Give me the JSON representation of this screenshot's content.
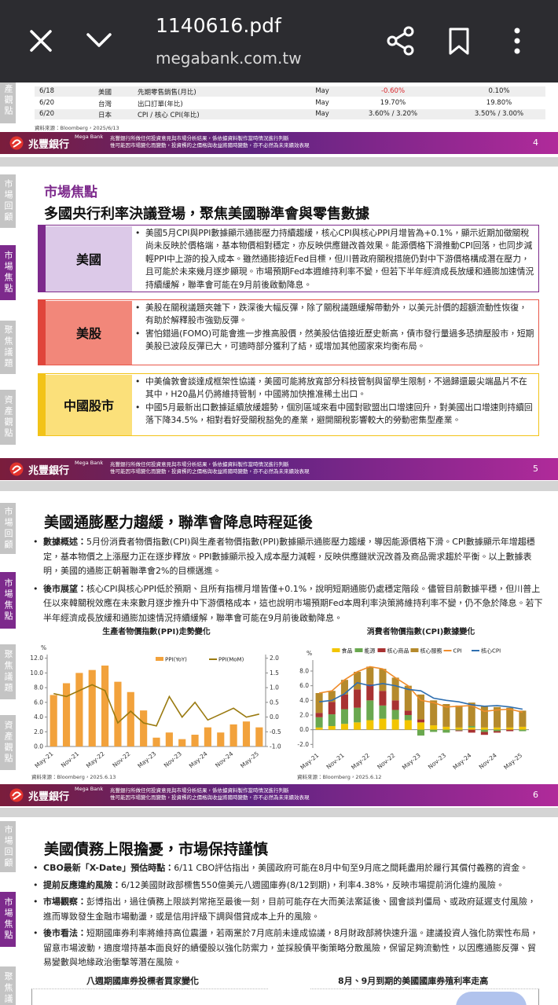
{
  "viewer": {
    "title": "1140616.pdf",
    "url": "megabank.com.tw"
  },
  "brand": {
    "name": "兆豐銀行",
    "en": "Mega Bank",
    "disclaimer": [
      "兆豐銀行所做任何投資意見與市場分析結果，係依據資料製作當時情況進行判斷",
      "惟可能因市場變化而變動，投資標的之價格與收益將隨時變動，亦不必然為未來績效表現"
    ]
  },
  "sidebar": [
    "市場回顧",
    "市場焦點",
    "聚焦議題",
    "資產觀點"
  ],
  "page4": {
    "rows": [
      [
        "6/18",
        "美國",
        "先期零售銷售(月比)",
        "May",
        "-0.60%",
        "0.10%"
      ],
      [
        "6/20",
        "台灣",
        "出口訂單(年比)",
        "May",
        "19.70%",
        "19.80%"
      ],
      [
        "6/20",
        "日本",
        "CPI / 核心 CPI(年比)",
        "May",
        "3.60% / 3.20%",
        "3.50% / 3.00%"
      ]
    ],
    "source": "資料來源：Bloomberg，2025/6/13",
    "number": 4
  },
  "page5": {
    "title": "市場焦點",
    "subtitle": "多國央行利率決議登場，聚焦美國聯準會與零售數據",
    "boxes": [
      {
        "label": "美國",
        "bullets": [
          "美國5月CPI與PPI數據顯示通膨壓力持續趨緩，核心CPI與核心PPI月增皆為+0.1%，顯示近期加徵關稅尚未反映於價格端，基本物價相對穩定，亦反映供應鏈改善效果。能源價格下滑推動CPI回落，也同步減輕PPI中上游的投入成本。雖然通膨接近Fed目標，但川普政府關稅措施仍對中下游價格構成潛在壓力，且可能於未來幾月逐步顯現。市場預期Fed本週維持利率不變，但若下半年經濟成長放緩和通膨加速情況持續緩解，聯準會可能在9月前後啟動降息。"
        ]
      },
      {
        "label": "美股",
        "bullets": [
          "美股在關稅議題夾雜下，跌深後大幅反彈，除了關稅議題緩解帶動外，以美元計價的超額流動性恢復，有助於解釋股市強勁反彈。",
          "害怕錯過(FOMO)可能會進一步推高股價，然美股估值接近歷史新高，債市發行量過多恐擠壓股市，短期美股已波段反彈已大，可適時部分獲利了結，或增加其他國家來均衡布局。"
        ]
      },
      {
        "label": "中國股市",
        "bullets": [
          "中美倫敦會談達成框架性協議，美國可能將放寬部分科技管制與留學生限制，不過歸還最尖端晶片不在其中，H20晶片仍將維持管制，中國將加快推准稀土出口。",
          "中國5月最新出口數據延續放緩趨勢，個別區域來看中國對歐盟出口增速回升，對美國出口增速則持續回落下降34.5%，相對看好受關稅豁免的產業，避開關稅影響較大的勞動密集型產業。"
        ]
      }
    ],
    "number": 5
  },
  "page6": {
    "title": "美國通膨壓力趨緩，聯準會降息時程延後",
    "bullets": [
      {
        "lead": "數據概述：",
        "text": "5月份消費者物價指數(CPI)與生產者物價指數(PPI)數據顯示通膨壓力趨緩，導因能源價格下滑。CPI數據顯示年增趨穩定，基本物價之上漲壓力正在逐步釋放。PPI數據顯示投入成本壓力減輕，反映供應鏈狀況改善及商品需求趨於平衡。以上數據表明，美國的通膨正朝著聯準會2%的目標邁進。"
      },
      {
        "lead": "後市展望：",
        "text": "核心CPI與核心PPI低於預期、且所有指標月增皆僅+0.1%，說明短期通膨仍處穩定階段。儘管目前數據平穩，但川普上任以來韓關稅效應在未來數月逐步推升中下游價格成本，這也說明市場預期Fed本周利率決策將維持利率不變，仍不急於降息。若下半年經濟成長放緩和通膨加速情況持續緩解，聯準會可能在9月前後啟動降息。"
      }
    ],
    "charts": [
      {
        "type": "combo",
        "title": "生產者物價指數(PPI)走勢變化",
        "y_unit": "%",
        "legend": "top-right",
        "stacked": true,
        "categories": [
          "May-21",
          null,
          "Nov-21",
          null,
          "May-22",
          null,
          "Nov-22",
          null,
          "May-23",
          null,
          "Nov-23",
          null,
          "May-24",
          null,
          "Nov-24",
          null,
          "May-25"
        ],
        "series": [
          {
            "name": "PPI(YoY)",
            "kind": "bar",
            "color": "#f2a23c",
            "values": [
              7.0,
              8.6,
              10.0,
              10.4,
              11.0,
              8.8,
              7.4,
              4.9,
              1.2,
              1.9,
              1.0,
              1.6,
              2.6,
              1.9,
              3.0,
              3.4,
              2.6
            ]
          },
          {
            "name": "PPI(MoM)",
            "kind": "line",
            "axis": "y2",
            "color": "#9a7a10",
            "values": [
              0.8,
              0.7,
              0.9,
              1.1,
              0.9,
              -0.2,
              0.2,
              -0.2,
              -0.3,
              0.7,
              0.0,
              0.5,
              -0.1,
              0.1,
              0.3,
              0.0,
              0.1
            ]
          }
        ],
        "ylim": [
          0,
          12.5
        ],
        "yticks": [
          {
            "value": 0,
            "label": "0.0"
          },
          {
            "value": 2,
            "label": "2.0"
          },
          {
            "value": 4,
            "label": "4.0"
          },
          {
            "value": 6,
            "label": "6.0"
          },
          {
            "value": 8,
            "label": "8.0"
          },
          {
            "value": 10,
            "label": "10.0"
          },
          {
            "value": 12,
            "label": "12.0"
          }
        ],
        "y2lim": [
          -1,
          2.125
        ],
        "y2ticks": [
          {
            "value": -1,
            "label": "-1.0"
          },
          {
            "value": -0.5,
            "label": "-0.5"
          },
          {
            "value": 0,
            "label": "0.0"
          },
          {
            "value": 0.5,
            "label": "0.5"
          },
          {
            "value": 1,
            "label": "1.0"
          },
          {
            "value": 1.5,
            "label": "1.5"
          },
          {
            "value": 2,
            "label": "2.0"
          }
        ],
        "source": "資料來源：Bloomberg，2025.6.13"
      },
      {
        "type": "combo",
        "title": "消費者物價指數(CPI)數據變化",
        "y_unit": "%",
        "legend": "top",
        "stacked": true,
        "categories": [
          "May-21",
          null,
          "Nov-21",
          null,
          "May-22",
          null,
          "Nov-22",
          null,
          "May-23",
          null,
          "Nov-23",
          null,
          "May-24",
          null,
          "Nov-24",
          null,
          "May-25"
        ],
        "series": [
          {
            "name": "食品",
            "kind": "bar",
            "color": "#f2c500",
            "values": [
              0.3,
              0.5,
              0.8,
              1.0,
              1.3,
              1.5,
              1.4,
              1.3,
              1.0,
              0.6,
              0.4,
              0.3,
              0.3,
              0.3,
              0.3,
              0.3,
              0.4
            ]
          },
          {
            "name": "能源",
            "kind": "bar",
            "color": "#6aa84f",
            "values": [
              1.4,
              1.6,
              2.0,
              2.0,
              2.7,
              1.8,
              1.3,
              0.7,
              -0.8,
              -0.3,
              -0.4,
              -0.1,
              0.2,
              -0.3,
              -0.2,
              0.0,
              -0.2
            ]
          },
          {
            "name": "核心商品",
            "kind": "bar",
            "color": "#a83232",
            "values": [
              0.6,
              1.7,
              2.0,
              2.5,
              2.2,
              2.0,
              1.3,
              0.6,
              0.4,
              0.0,
              0.0,
              -0.1,
              -0.4,
              -0.4,
              -0.2,
              -0.2,
              0.0
            ]
          },
          {
            "name": "核心服務",
            "kind": "bar",
            "color": "#b58a2c",
            "values": [
              2.7,
              1.5,
              2.0,
              2.4,
              2.4,
              3.0,
              3.1,
              3.4,
              3.4,
              3.4,
              3.1,
              3.0,
              3.2,
              2.9,
              2.8,
              2.7,
              2.2
            ]
          },
          {
            "name": "CPI",
            "kind": "line",
            "color": "#f08c2a",
            "values": [
              5.0,
              5.3,
              6.8,
              7.9,
              8.6,
              8.3,
              7.1,
              6.0,
              4.0,
              3.7,
              3.1,
              3.2,
              3.3,
              2.5,
              2.7,
              2.8,
              2.4
            ]
          },
          {
            "name": "核心CPI",
            "kind": "line",
            "color": "#2f6fb0",
            "values": [
              3.8,
              4.0,
              4.9,
              6.4,
              6.0,
              6.3,
              6.0,
              5.5,
              5.3,
              4.3,
              4.0,
              3.8,
              3.4,
              3.2,
              3.3,
              3.1,
              2.8
            ]
          }
        ],
        "ylim": [
          -2.5,
          9.5
        ],
        "yticks": [
          {
            "value": -2,
            "label": "-2.0"
          },
          {
            "value": 0,
            "label": "0.0"
          },
          {
            "value": 2,
            "label": "2.0"
          },
          {
            "value": 4,
            "label": "4.0"
          },
          {
            "value": 6,
            "label": "6.0"
          },
          {
            "value": 8,
            "label": "8.0"
          }
        ],
        "source": "資料來源：Bloomberg，2025.6.12"
      }
    ],
    "number": 6
  },
  "page7": {
    "title": "美國債務上限擔憂，市場保持謹慎",
    "bullets": [
      {
        "lead": "CBO最新「X-Date」預估時點：",
        "text": "6/11 CBO評估指出，美國政府可能在8月中旬至9月底之間耗盡用於履行其償付義務的資金。"
      },
      {
        "lead": "提前反應違約風險：",
        "text": "6/12美國財政部標售550億美元八週國庫券(8/12到期)，利率4.38%，反映市場提前消化違約風險。"
      },
      {
        "lead": "市場觀察：",
        "text": "彭博指出，過往債務上限談判常拖至最後一刻，目前可能存在大而美法案延後、國會談判僵局、或政府延遲支付風險，進而導致發生金融市場動盪，或是信用評級下調與借貸成本上升的風險。"
      },
      {
        "lead": "後市看法：",
        "text": "短期國庫券利率將維持高位震盪，若兩黨於7月底前未達成協議，8月財政部將快速升溫。建議投資人強化防禦性布局，留意市場波動，適度增持基本面良好的績優股以強化防禦力，並採股債平衡策略分散風險，保留足夠流動性，以因應通膨反彈、貿易變數與地緣政治衝擊等潛在風險。"
      }
    ],
    "chart_titles": [
      "八週期國庫券投標者買家變化",
      "8月、9月到期的美國國庫券殖利率走高"
    ]
  }
}
